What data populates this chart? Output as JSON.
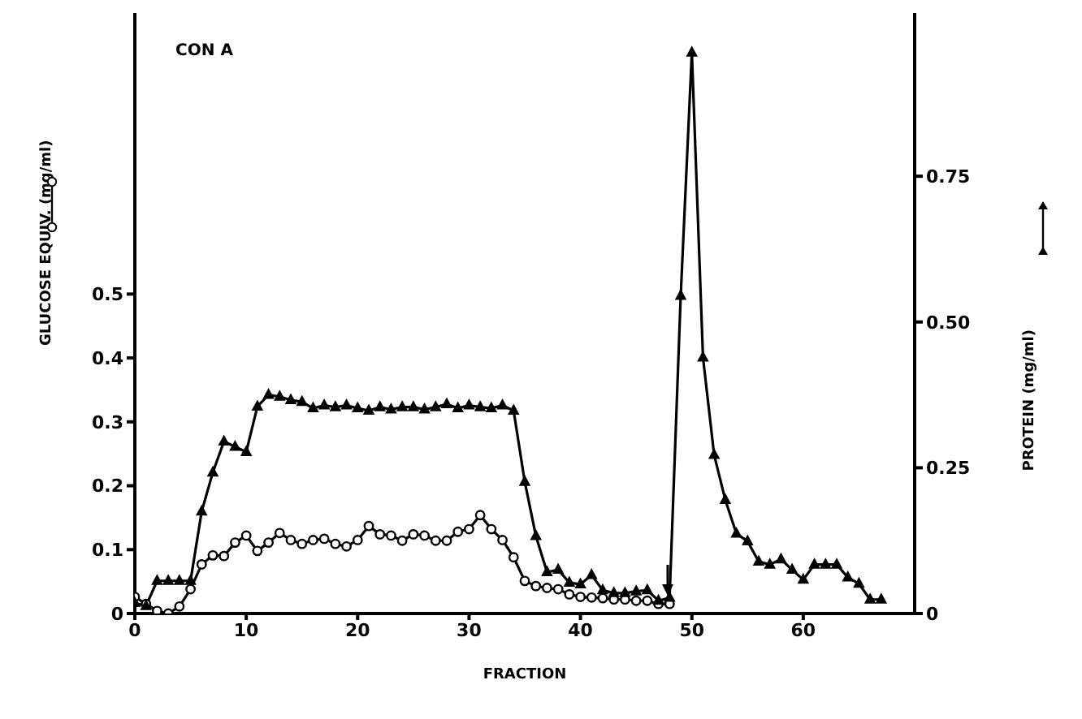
{
  "chart_data": {
    "type": "line",
    "title": "CON A",
    "xlabel": "FRACTION",
    "ylabel": "GLUCOSE EQUIV. (mg/ml)",
    "y2label": "PROTEIN (mg/ml)",
    "x": [
      0,
      1,
      2,
      3,
      4,
      5,
      6,
      7,
      8,
      9,
      10,
      11,
      12,
      13,
      14,
      15,
      16,
      17,
      18,
      19,
      20,
      21,
      22,
      23,
      24,
      25,
      26,
      27,
      28,
      29,
      30,
      31,
      32,
      33,
      34,
      35,
      36,
      37,
      38,
      39,
      40,
      41,
      42,
      43,
      44,
      45,
      46,
      47,
      48,
      49,
      50,
      51,
      52,
      53,
      54,
      55,
      56,
      57,
      58,
      59,
      60,
      61,
      62,
      63,
      64,
      65,
      66,
      67
    ],
    "series": [
      {
        "marker": "circle",
        "color": "#000000",
        "x": [
          0,
          1,
          2,
          3,
          4,
          5,
          6,
          7,
          8,
          9,
          10,
          11,
          12,
          13,
          14,
          15,
          16,
          17,
          18,
          19,
          20,
          21,
          22,
          23,
          24,
          25,
          26,
          27,
          28,
          29,
          30,
          31,
          32,
          33,
          34,
          35,
          36,
          37,
          38,
          39,
          40,
          41,
          42,
          43,
          44,
          45,
          46,
          47,
          48
        ],
        "values": [
          0.026,
          0.015,
          0.004,
          0,
          0.011,
          0.038,
          0.077,
          0.091,
          0.09,
          0.111,
          0.122,
          0.098,
          0.111,
          0.126,
          0.115,
          0.109,
          0.115,
          0.117,
          0.109,
          0.105,
          0.115,
          0.137,
          0.124,
          0.122,
          0.114,
          0.124,
          0.122,
          0.114,
          0.114,
          0.128,
          0.132,
          0.154,
          0.132,
          0.115,
          0.088,
          0.051,
          0.043,
          0.04,
          0.038,
          0.03,
          0.026,
          0.025,
          0.024,
          0.022,
          0.022,
          0.02,
          0.02,
          0.015,
          0.015
        ]
      },
      {
        "marker": "triangle",
        "color": "#000000",
        "axis": "y2",
        "values": [
          0.018,
          0.013,
          0.056,
          0.056,
          0.056,
          0.056,
          0.175,
          0.242,
          0.295,
          0.286,
          0.277,
          0.355,
          0.375,
          0.372,
          0.366,
          0.363,
          0.352,
          0.357,
          0.354,
          0.357,
          0.352,
          0.348,
          0.354,
          0.35,
          0.354,
          0.354,
          0.35,
          0.354,
          0.359,
          0.352,
          0.357,
          0.354,
          0.352,
          0.357,
          0.348,
          0.226,
          0.133,
          0.071,
          0.075,
          0.053,
          0.05,
          0.066,
          0.04,
          0.035,
          0.035,
          0.038,
          0.04,
          0.022,
          0.027,
          0.545,
          0.962,
          0.439,
          0.272,
          0.195,
          0.137,
          0.124,
          0.089,
          0.084,
          0.093,
          0.075,
          0.058,
          0.084,
          0.084,
          0.084,
          0.062,
          0.051,
          0.024,
          0.024
        ]
      }
    ],
    "xlim": [
      0,
      70
    ],
    "xticks": [
      0,
      10,
      20,
      30,
      40,
      50,
      60
    ],
    "ylim": [
      0,
      0.94
    ],
    "yticks": [
      0,
      {
        "value": 0.1,
        "label": "0.1"
      },
      {
        "value": 0.2,
        "label": "0.2"
      },
      {
        "value": 0.3,
        "label": "0.3"
      },
      {
        "value": 0.4,
        "label": "0.4"
      },
      {
        "value": 0.5,
        "label": "0.5"
      }
    ],
    "y2lim": [
      0,
      1.03
    ],
    "y2ticks": [
      0,
      0.25,
      {
        "value": 0.5,
        "label": "0.50"
      },
      0.75
    ],
    "grid": false,
    "legend": false,
    "line_style": "solid"
  }
}
